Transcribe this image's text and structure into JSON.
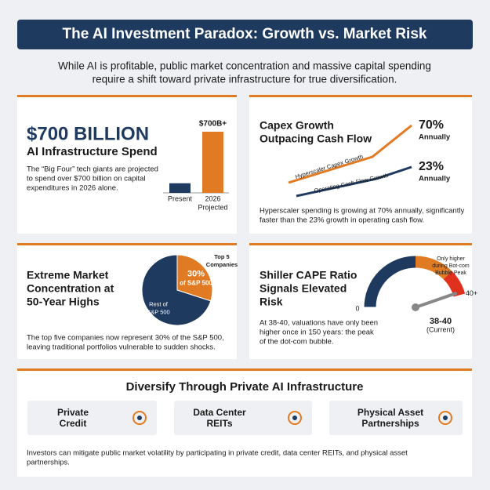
{
  "header": {
    "title": "The AI Investment Paradox: Growth vs. Market Risk",
    "subtitle": [
      "While AI is profitable, public market concentration and massive capital spending",
      "require a shift toward private infrastructure for true diversification."
    ]
  },
  "spend": {
    "headline": "$700 BILLION",
    "title": "AI Infrastructure Spend",
    "description": [
      "The “Big Four” tech giants are projected",
      "to spend over $700 billion on capital",
      "expenditures in 2026 alone."
    ],
    "chart": {
      "type": "bar",
      "categories": [
        [
          "Present"
        ],
        [
          "2026",
          "Projected"
        ]
      ],
      "values": [
        110,
        700
      ],
      "value_labels": [
        null,
        "$700B+"
      ],
      "colors": [
        "#1f3a5f",
        "#e07b24"
      ]
    }
  },
  "capex": {
    "title": [
      "Capex Growth",
      "Outpacing Cash Flow"
    ],
    "chart": {
      "type": "line",
      "series": [
        {
          "name": "Hyperscaler Capex Growth",
          "color": "#e07b24",
          "rate": 70,
          "rate_label": "70%",
          "period": "Annually"
        },
        {
          "name": "Operating Cash Flow Growth",
          "color": "#1f3a5f",
          "rate": 23,
          "rate_label": "23%",
          "period": "Annually"
        }
      ]
    },
    "description": [
      "Hyperscaler spending is growing at 70% annually, significantly",
      "faster than the 23% growth in operating cash flow."
    ]
  },
  "concentration": {
    "title": [
      "Extreme Market",
      "Concentration at",
      "50-Year Highs"
    ],
    "chart": {
      "type": "pie",
      "slices": [
        {
          "name": [
            "Top 5",
            "Companies"
          ],
          "value": 30,
          "value_label": "30%",
          "caption": "of S&P 500",
          "color": "#e07b24"
        },
        {
          "name": [
            "Rest of",
            "S&P 500"
          ],
          "value": 70,
          "color": "#1f3a5f"
        }
      ]
    },
    "description": [
      "The top five companies now represent 30% of the S&P 500,",
      "leaving traditional portfolios vulnerable to sudden shocks."
    ]
  },
  "cape": {
    "title": [
      "Shiller CAPE Ratio",
      "Signals Elevated",
      "Risk"
    ],
    "chart": {
      "type": "gauge",
      "lim": [
        0,
        40
      ],
      "ticks": [
        0,
        {
          "value": 40,
          "label": "40+"
        }
      ],
      "value": 39,
      "value_label": "38-40",
      "value_caption": "(Current)",
      "annotation": [
        "Only higher",
        "during Bot-com",
        "Bubble Peak"
      ]
    },
    "description": [
      "At 38-40, valuations have only been",
      "higher once in 150 years: the peak",
      "of the dot-com bubble."
    ]
  },
  "diversify": {
    "title": "Diversify Through Private AI Infrastructure",
    "options": [
      [
        "Private",
        "Credit"
      ],
      [
        "Data Center",
        "REITs"
      ],
      [
        "Physical Asset",
        "Partnerships"
      ]
    ],
    "footer": [
      "Investors can mitigate public market volatility by participating in private credit, data center REITs, and physical asset",
      "partnerships."
    ]
  }
}
